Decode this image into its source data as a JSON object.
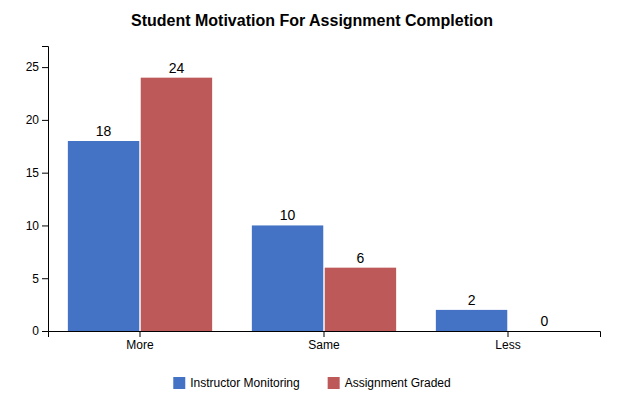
{
  "chart_data": {
    "type": "bar",
    "title": "Student Motivation For Assignment Completion",
    "categories": [
      "More",
      "Same",
      "Less"
    ],
    "series": [
      {
        "name": "Instructor Monitoring",
        "color": "#4472C4",
        "values": [
          18,
          10,
          2
        ]
      },
      {
        "name": "Assignment Graded",
        "color": "#BE5959",
        "values": [
          24,
          6,
          0
        ]
      }
    ],
    "ylim": [
      0,
      27
    ],
    "yticks": [
      0,
      5,
      10,
      15,
      20,
      25
    ],
    "grid": false,
    "legend": "bottom",
    "data_labels": true
  }
}
